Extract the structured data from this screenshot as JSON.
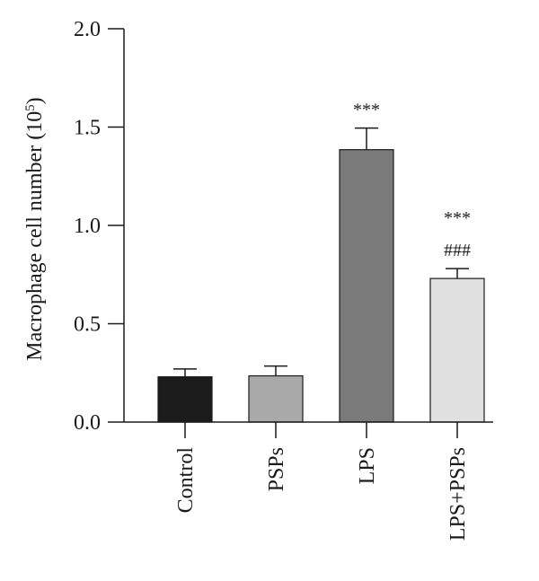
{
  "chart_data": {
    "type": "bar",
    "categories": [
      "Control",
      "PSPs",
      "LPS",
      "LPS+PSPs"
    ],
    "values": [
      0.23,
      0.235,
      1.385,
      0.73
    ],
    "errors": [
      0.04,
      0.05,
      0.11,
      0.05
    ],
    "colors": [
      "#1c1c1c",
      "#a9a9a9",
      "#7a7a7a",
      "#e0e0e0"
    ],
    "annotations": [
      {
        "category": "LPS",
        "lines": [
          "***"
        ]
      },
      {
        "category": "LPS+PSPs",
        "lines": [
          "***",
          "###"
        ]
      }
    ],
    "ylabel": "Macrophage cell number (10",
    "ylabel_exponent": "5",
    "ylabel_suffix": ")",
    "ylim": [
      0,
      2.0
    ],
    "yticks": [
      "0.0",
      "0.5",
      "1.0",
      "1.5",
      "2.0"
    ],
    "grid": false
  }
}
